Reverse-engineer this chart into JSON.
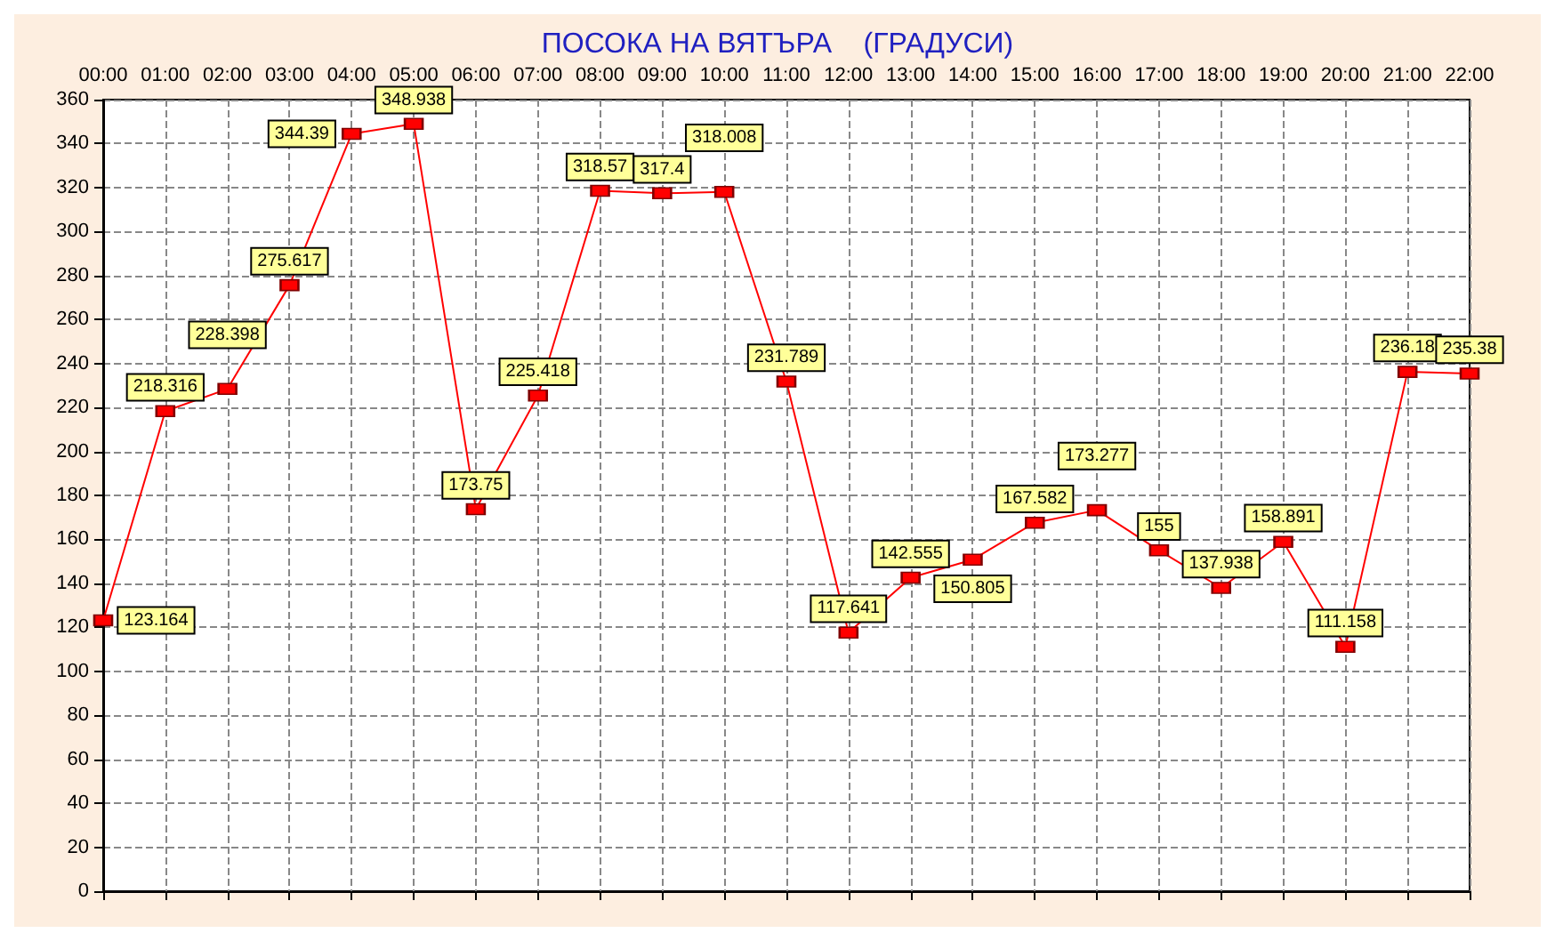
{
  "chart_data": {
    "type": "line",
    "title": "ПОСОКА НА ВЯТЪРА    (ГРАДУСИ)",
    "categories": [
      "00:00",
      "01:00",
      "02:00",
      "03:00",
      "04:00",
      "05:00",
      "06:00",
      "07:00",
      "08:00",
      "09:00",
      "10:00",
      "11:00",
      "12:00",
      "13:00",
      "14:00",
      "15:00",
      "16:00",
      "17:00",
      "18:00",
      "19:00",
      "20:00",
      "21:00",
      "22:00"
    ],
    "series": [
      {
        "color": "#ff0000",
        "values": [
          123.164,
          218.316,
          228.398,
          275.617,
          344.39,
          348.938,
          173.75,
          225.418,
          318.57,
          317.4,
          318.008,
          231.789,
          117.641,
          142.555,
          150.805,
          167.582,
          173.277,
          155,
          137.938,
          158.891,
          111.158,
          236.18,
          235.38
        ]
      }
    ],
    "ylim": [
      0,
      360
    ],
    "yticks": [
      0,
      20,
      40,
      60,
      80,
      100,
      120,
      140,
      160,
      180,
      200,
      220,
      240,
      260,
      280,
      300,
      320,
      340,
      360
    ],
    "grid": true,
    "marker": "square",
    "line_style": "solid",
    "data_labels": true
  }
}
